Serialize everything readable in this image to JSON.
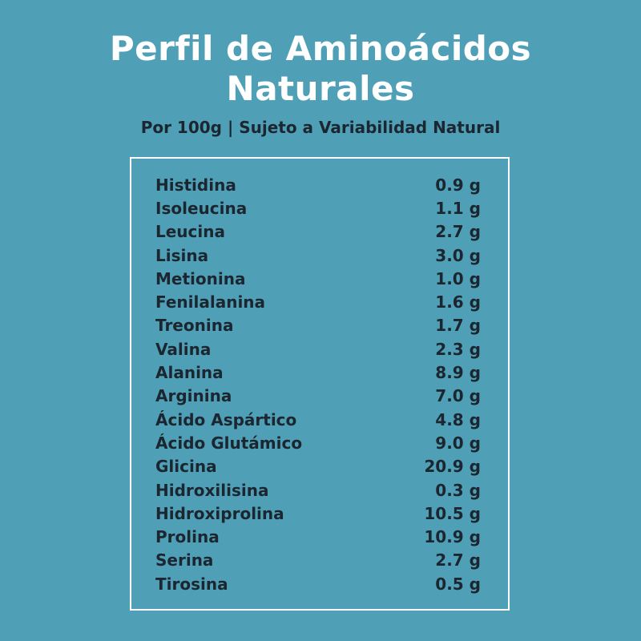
{
  "header": {
    "title_line1": "Perfil de Aminoácidos",
    "title_line2": "Naturales",
    "subtitle": "Por 100g | Sujeto a Variabilidad Natural"
  },
  "table": {
    "rows": [
      {
        "name": "Histidina",
        "value": "0.9 g"
      },
      {
        "name": "Isoleucina",
        "value": "1.1 g"
      },
      {
        "name": "Leucina",
        "value": "2.7 g"
      },
      {
        "name": "Lisina",
        "value": "3.0 g"
      },
      {
        "name": "Metionina",
        "value": "1.0 g"
      },
      {
        "name": "Fenilalanina",
        "value": "1.6 g"
      },
      {
        "name": "Treonina",
        "value": "1.7 g"
      },
      {
        "name": "Valina",
        "value": "2.3 g"
      },
      {
        "name": "Alanina",
        "value": "8.9 g"
      },
      {
        "name": "Arginina",
        "value": "7.0 g"
      },
      {
        "name": "Ácido Aspártico",
        "value": "4.8 g"
      },
      {
        "name": "Ácido Glutámico",
        "value": "9.0 g"
      },
      {
        "name": "Glicina",
        "value": "20.9 g"
      },
      {
        "name": "Hidroxilisina",
        "value": "0.3 g"
      },
      {
        "name": "Hidroxiprolina",
        "value": "10.5 g"
      },
      {
        "name": "Prolina",
        "value": "10.9 g"
      },
      {
        "name": "Serina",
        "value": "2.7 g"
      },
      {
        "name": "Tirosina",
        "value": "0.5 g"
      }
    ]
  },
  "colors": {
    "background": "#4fa0b6",
    "title": "#ffffff",
    "text": "#1b2630",
    "border": "#ffffff"
  }
}
